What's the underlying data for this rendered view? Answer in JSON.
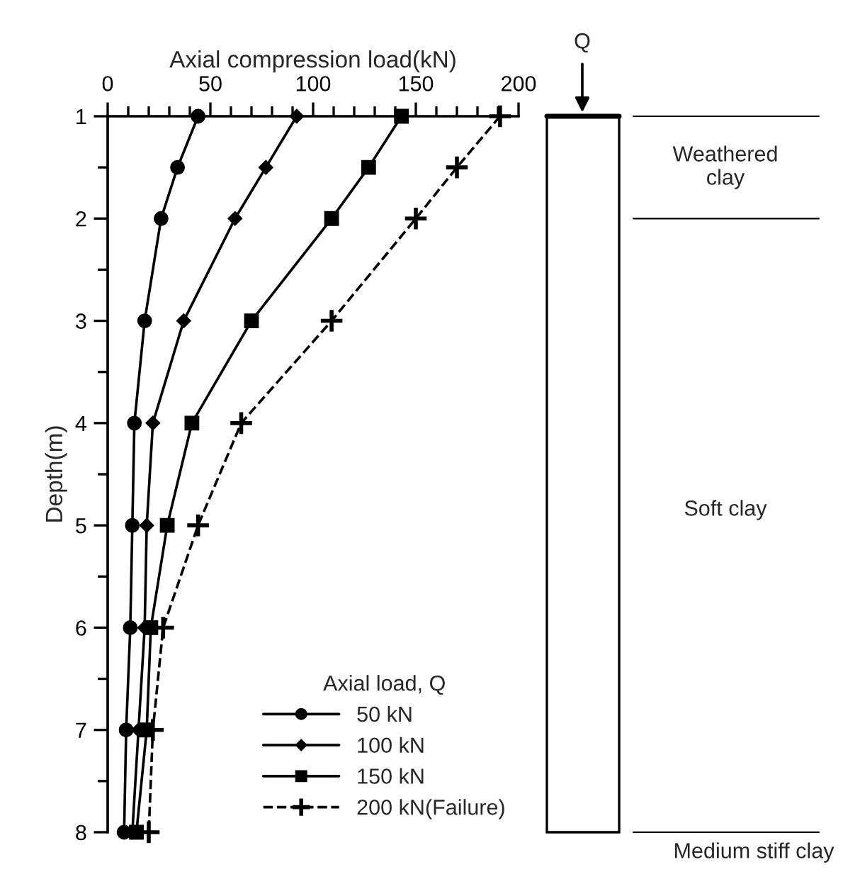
{
  "chart_data": {
    "type": "line",
    "xlabel": "Axial compression load(kN)",
    "ylabel": "Depth(m)",
    "legend_title": "Axial load, Q",
    "legend": "bottom right",
    "grid": false,
    "series": [
      {
        "name": "50 kN",
        "color": "#000000",
        "marker": "circle",
        "line_style": "solid",
        "x": [
          44,
          34,
          26,
          18,
          13,
          12,
          11,
          9,
          8
        ],
        "values": [
          1,
          1.5,
          2,
          3,
          4,
          5,
          6,
          7,
          8
        ]
      },
      {
        "name": "100 kN",
        "color": "#000000",
        "marker": "diamond",
        "line_style": "solid",
        "x": [
          92,
          77,
          62,
          37,
          22,
          19,
          18,
          15,
          12
        ],
        "values": [
          1,
          1.5,
          2,
          3,
          4,
          5,
          6,
          7,
          8
        ]
      },
      {
        "name": "150 kN",
        "color": "#000000",
        "marker": "square",
        "line_style": "solid",
        "x": [
          143,
          127,
          109,
          70,
          41,
          29,
          21,
          19,
          14
        ],
        "values": [
          1,
          1.5,
          2,
          3,
          4,
          5,
          6,
          7,
          8
        ]
      },
      {
        "name": "200 kN(Failure)",
        "color": "#000000",
        "marker": "cross",
        "line_style": "dashed",
        "x": [
          191,
          170,
          150,
          109,
          65,
          44,
          27,
          22,
          20
        ],
        "values": [
          1,
          1.5,
          2,
          3,
          4,
          5,
          6,
          7,
          8
        ]
      }
    ],
    "xlim": [
      0,
      200
    ],
    "xticks": [
      0,
      {
        "value": 10,
        "label": null
      },
      {
        "value": 20,
        "label": null
      },
      {
        "value": 30,
        "label": null
      },
      {
        "value": 40,
        "label": null
      },
      50,
      {
        "value": 60,
        "label": null
      },
      {
        "value": 70,
        "label": null
      },
      {
        "value": 80,
        "label": null
      },
      {
        "value": 90,
        "label": null
      },
      100,
      {
        "value": 110,
        "label": null
      },
      {
        "value": 120,
        "label": null
      },
      {
        "value": 130,
        "label": null
      },
      {
        "value": 140,
        "label": null
      },
      150,
      {
        "value": 160,
        "label": null
      },
      {
        "value": 170,
        "label": null
      },
      {
        "value": 180,
        "label": null
      },
      {
        "value": 190,
        "label": null
      },
      200
    ],
    "ylim": [
      8,
      1
    ],
    "yticks": [
      1,
      {
        "value": 1.5,
        "label": null
      },
      2,
      {
        "value": 2.5,
        "label": null
      },
      3,
      {
        "value": 3.5,
        "label": null
      },
      4,
      {
        "value": 4.5,
        "label": null
      },
      5,
      {
        "value": 5.5,
        "label": null
      },
      6,
      {
        "value": 6.5,
        "label": null
      },
      7,
      {
        "value": 7.5,
        "label": null
      },
      8
    ],
    "annotations": [
      "Q",
      "Weathered\nclay",
      "Soft clay",
      "Medium stiff clay"
    ]
  }
}
